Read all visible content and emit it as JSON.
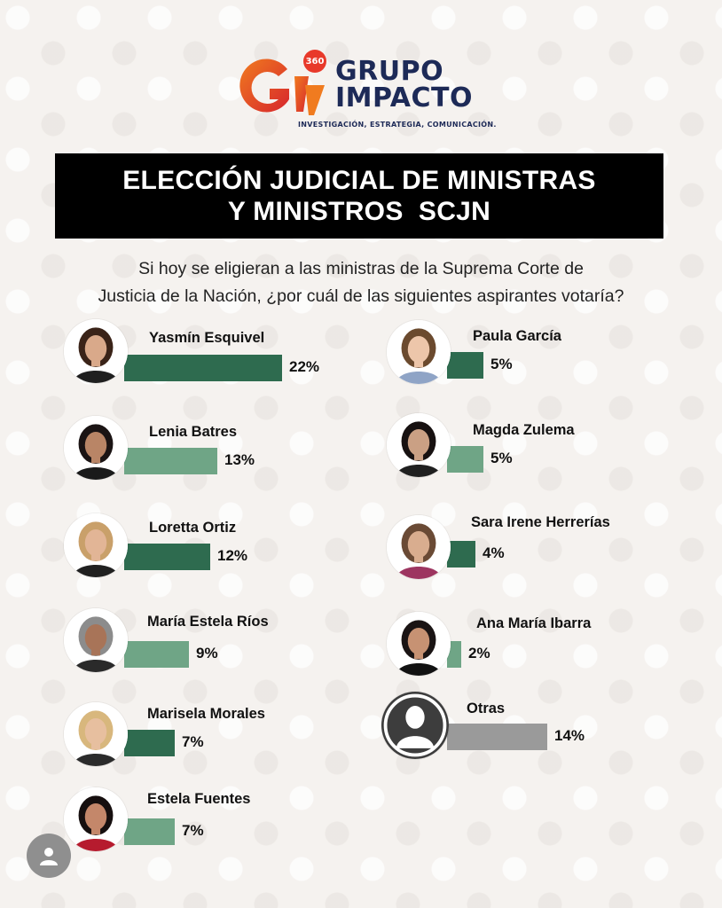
{
  "brand": {
    "badge": "360",
    "line1": "GRUPO",
    "line2": "IMPACTO",
    "tagline": "INVESTIGACIÓN, ESTRATEGIA, COMUNICACIÓN."
  },
  "title": [
    "ELECCIÓN JUDICIAL DE MINISTRAS",
    "Y MINISTROS  SCJN"
  ],
  "question": [
    "Si hoy se eligieran a las ministras de la Suprema Corte de",
    "Justicia de la Nación, ¿por cuál de las siguientes aspirantes votaría?"
  ],
  "colors": {
    "dark_green": "#2e6b4f",
    "light_green": "#6fa586",
    "gray": "#9a9a9a",
    "title_bg": "#000000"
  },
  "chart_data": {
    "type": "bar",
    "orientation": "horizontal",
    "unit": "%",
    "categories": [
      "Yasmín Esquivel",
      "Lenia Batres",
      "Loretta Ortiz",
      "María Estela Ríos",
      "Marisela Morales",
      "Estela Fuentes",
      "Paula García",
      "Magda Zulema",
      "Sara Irene Herrerías",
      "Ana María Ibarra",
      "Otras"
    ],
    "values": [
      22,
      13,
      12,
      9,
      7,
      7,
      5,
      5,
      4,
      2,
      14
    ],
    "labels": [
      "22%",
      "13%",
      "12%",
      "9%",
      "7%",
      "7%",
      "5%",
      "5%",
      "4%",
      "2%",
      "14%"
    ],
    "bar_colors": [
      "#2e6b4f",
      "#6fa586",
      "#2e6b4f",
      "#6fa586",
      "#2e6b4f",
      "#6fa586",
      "#2e6b4f",
      "#6fa586",
      "#2e6b4f",
      "#6fa586",
      "#9a9a9a"
    ],
    "icons": [
      "portrait",
      "portrait",
      "portrait",
      "portrait",
      "portrait",
      "portrait",
      "portrait",
      "portrait",
      "portrait",
      "portrait",
      "silhouette-icon"
    ],
    "legend": "none",
    "grid": false
  }
}
